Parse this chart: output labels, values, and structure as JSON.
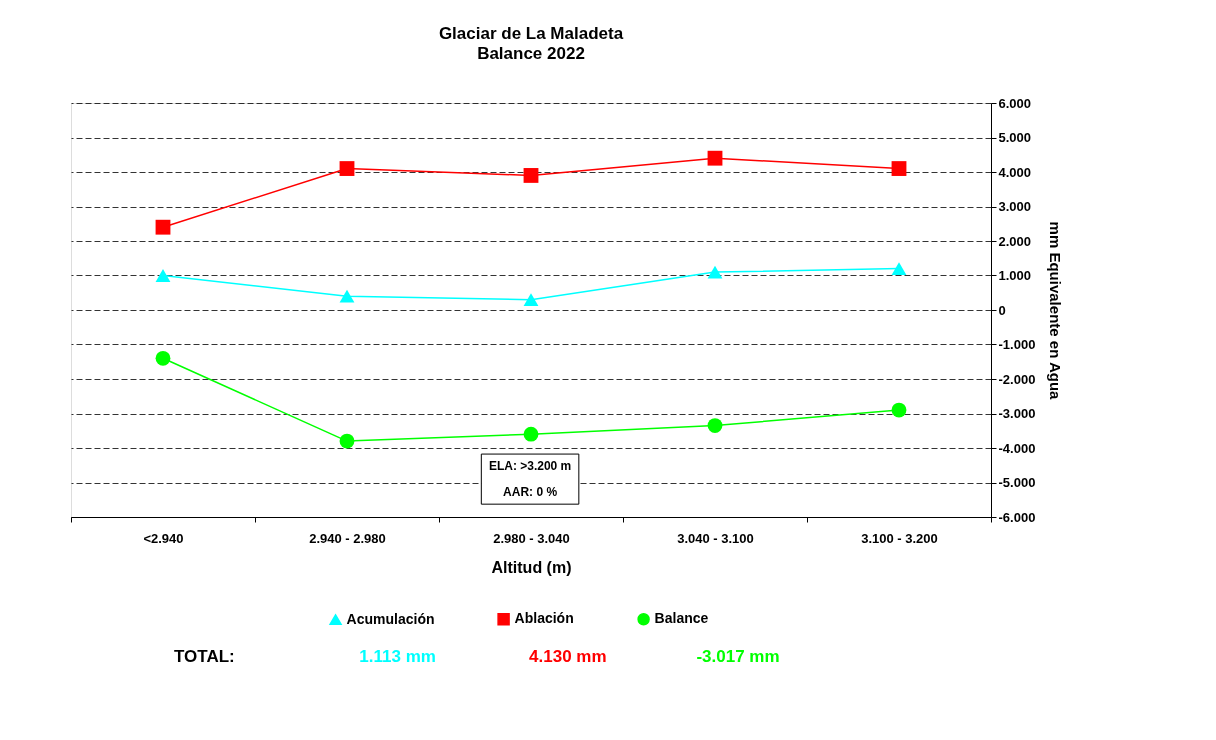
{
  "chart_data": {
    "type": "line",
    "title": "Glaciar de La Maladeta",
    "subtitle": "Balance 2022",
    "xlabel": "Altitud (m)",
    "ylabel": "mm Equivalente en Agua",
    "categories": [
      "<2.940",
      "2.940 - 2.980",
      "2.980 - 3.040",
      "3.040 - 3.100",
      "3.100 - 3.200"
    ],
    "series": [
      {
        "name": "Acumulación",
        "color": "#00ffff",
        "marker": "triangle",
        "values": [
          1000,
          400,
          300,
          1100,
          1200
        ]
      },
      {
        "name": "Ablación",
        "color": "#ff0000",
        "marker": "square",
        "values": [
          2400,
          4100,
          3900,
          4400,
          4100
        ]
      },
      {
        "name": "Balance",
        "color": "#00ff00",
        "marker": "circle",
        "values": [
          -1400,
          -3800,
          -3600,
          -3350,
          -2900
        ]
      }
    ],
    "ylim": [
      -6000,
      6000
    ],
    "yticks": [
      {
        "value": -6000,
        "label": "-6.000"
      },
      {
        "value": -5000,
        "label": "-5.000"
      },
      {
        "value": -4000,
        "label": "-4.000"
      },
      {
        "value": -3000,
        "label": "-3.000"
      },
      {
        "value": -2000,
        "label": "-2.000"
      },
      {
        "value": -1000,
        "label": "-1.000"
      },
      0,
      {
        "value": 1000,
        "label": "1.000"
      },
      {
        "value": 2000,
        "label": "2.000"
      },
      {
        "value": 3000,
        "label": "3.000"
      },
      {
        "value": 4000,
        "label": "4.000"
      },
      {
        "value": 5000,
        "label": "5.000"
      },
      {
        "value": 6000,
        "label": "6.000"
      }
    ],
    "grid": "y",
    "line_style": "solid",
    "legend": "bottom",
    "annotations": [
      "ELA: >3.200 m",
      "AAR:  0 %",
      "TOTAL:",
      "1.113 mm",
      "4.130 mm",
      "-3.017 mm"
    ]
  }
}
